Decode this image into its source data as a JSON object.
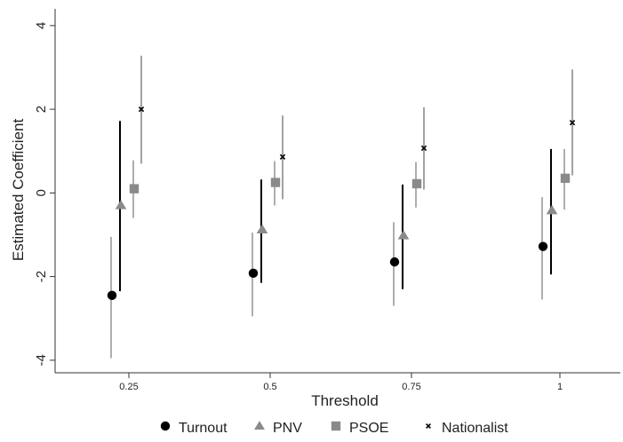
{
  "chart_data": {
    "type": "scatter",
    "xlabel": "Threshold",
    "ylabel": "Estimated Coefficient",
    "categories": [
      "0.25",
      "0.5",
      "0.75",
      "1"
    ],
    "ylim": [
      -4.3,
      4.4
    ],
    "yticks": [
      "-4",
      "-2",
      "0",
      "2",
      "4"
    ],
    "grid": false,
    "legend_position": "bottom",
    "series": [
      {
        "name": "Turnout",
        "marker": "circle",
        "color": "#000000",
        "ci_color": "#999999",
        "estimates": [
          -2.45,
          -1.92,
          -1.65,
          -1.28
        ],
        "ci_lower": [
          -3.95,
          -2.95,
          -2.7,
          -2.55
        ],
        "ci_upper": [
          -1.05,
          -0.95,
          -0.7,
          -0.1
        ]
      },
      {
        "name": "PNV",
        "marker": "triangle",
        "color": "#8a8a8a",
        "ci_color": "#000000",
        "estimates": [
          -0.3,
          -0.88,
          -1.02,
          -0.42
        ],
        "ci_lower": [
          -2.35,
          -2.15,
          -2.3,
          -1.95
        ],
        "ci_upper": [
          1.72,
          0.32,
          0.2,
          1.05
        ]
      },
      {
        "name": "PSOE",
        "marker": "square",
        "color": "#8a8a8a",
        "ci_color": "#999999",
        "estimates": [
          0.1,
          0.25,
          0.22,
          0.35
        ],
        "ci_lower": [
          -0.6,
          -0.3,
          -0.35,
          -0.4
        ],
        "ci_upper": [
          0.78,
          0.76,
          0.74,
          1.05
        ]
      },
      {
        "name": "Nationalist",
        "marker": "cross",
        "color": "#000000",
        "ci_color": "#8a8a8a",
        "estimates": [
          2.0,
          0.86,
          1.07,
          1.68
        ],
        "ci_lower": [
          0.7,
          -0.15,
          0.08,
          0.42
        ],
        "ci_upper": [
          3.28,
          1.85,
          2.05,
          2.95
        ]
      }
    ]
  }
}
